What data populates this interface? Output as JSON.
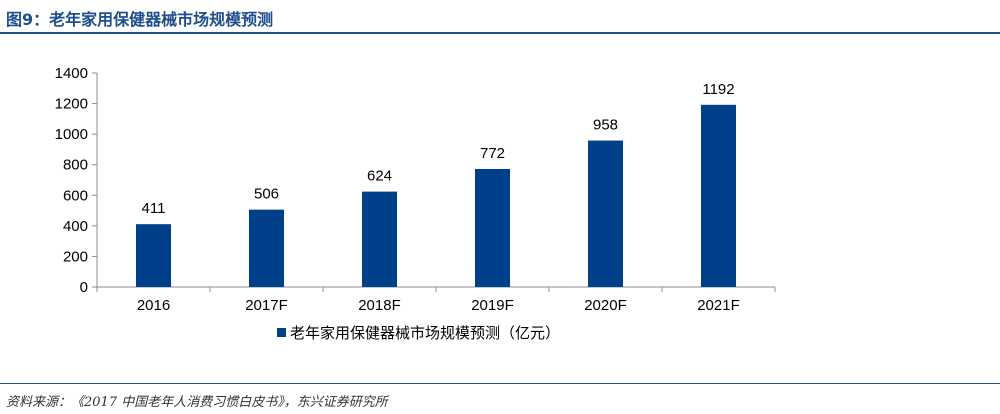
{
  "figure_title": "图9：老年家用保健器械市场规模预测",
  "source_note": "资料来源：《2017 中国老年人消费习惯白皮书》，东兴证券研究所",
  "colors": {
    "bar": "#003f8a",
    "title": "#1f4e8c"
  },
  "chart_data": {
    "type": "bar",
    "categories": [
      "2016",
      "2017F",
      "2018F",
      "2019F",
      "2020F",
      "2021F"
    ],
    "series": [
      {
        "name": "老年家用保健器械市场规模预测（亿元）",
        "values": [
          411,
          506,
          624,
          772,
          958,
          1192
        ]
      }
    ],
    "title": "",
    "xlabel": "",
    "ylabel": "",
    "ylim": [
      0,
      1400
    ],
    "yticks": [
      0,
      200,
      400,
      600,
      800,
      1000,
      1200,
      1400
    ],
    "grid": false,
    "legend": "bottom-center",
    "data_labels": true
  }
}
